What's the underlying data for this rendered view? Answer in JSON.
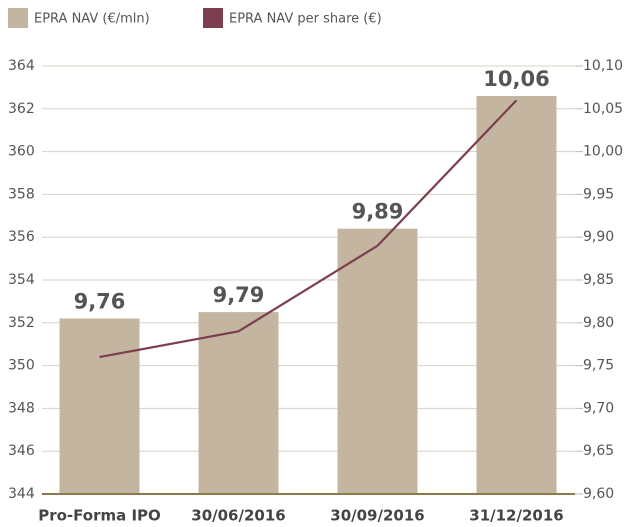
{
  "chart_data": {
    "type": "bar",
    "categories": [
      "Pro-Forma IPO",
      "30/06/2016",
      "30/09/2016",
      "31/12/2016"
    ],
    "series": [
      {
        "name": "EPRA NAV (€/mln)",
        "color": "#c3b59f",
        "values": [
          352.2,
          352.5,
          356.4,
          362.6
        ]
      },
      {
        "name": "EPRA NAV per share (€)",
        "color": "#7b3f4f",
        "type": "line",
        "axis": "y2",
        "values": [
          9.76,
          9.79,
          9.89,
          10.06
        ],
        "value_labels": [
          "9,76",
          "9,79",
          "9,89",
          "10,06"
        ]
      }
    ],
    "ylim": [
      344,
      364
    ],
    "yticks": [
      344,
      346,
      348,
      350,
      352,
      354,
      356,
      358,
      360,
      362,
      364
    ],
    "y2lim": [
      9.6,
      10.1
    ],
    "y2ticks": [
      {
        "value": 9.6,
        "label": "9,60"
      },
      {
        "value": 9.65,
        "label": "9,65"
      },
      {
        "value": 9.7,
        "label": "9,70"
      },
      {
        "value": 9.75,
        "label": "9,75"
      },
      {
        "value": 9.8,
        "label": "9,80"
      },
      {
        "value": 9.85,
        "label": "9,85"
      },
      {
        "value": 9.9,
        "label": "9,90"
      },
      {
        "value": 9.95,
        "label": "9,95"
      },
      {
        "value": 10.0,
        "label": "10,00"
      },
      {
        "value": 10.05,
        "label": "10,05"
      },
      {
        "value": 10.1,
        "label": "10,10"
      }
    ],
    "grid": true,
    "legend": "top"
  }
}
